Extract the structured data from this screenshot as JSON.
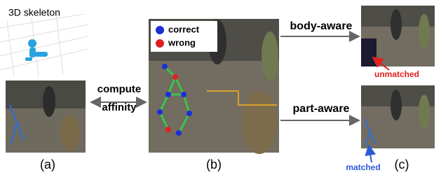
{
  "skeleton_panel": {
    "title": "3D skeleton"
  },
  "middle_arrow": {
    "line1": "compute",
    "line2": "affinity"
  },
  "legend": {
    "correct": "correct",
    "wrong": "wrong"
  },
  "branches": {
    "top": "body-aware",
    "bottom": "part-aware"
  },
  "annotations": {
    "unmatched": "unmatched",
    "matched": "matched"
  },
  "captions": {
    "a": "(a)",
    "b": "(b)",
    "c": "(c)"
  }
}
